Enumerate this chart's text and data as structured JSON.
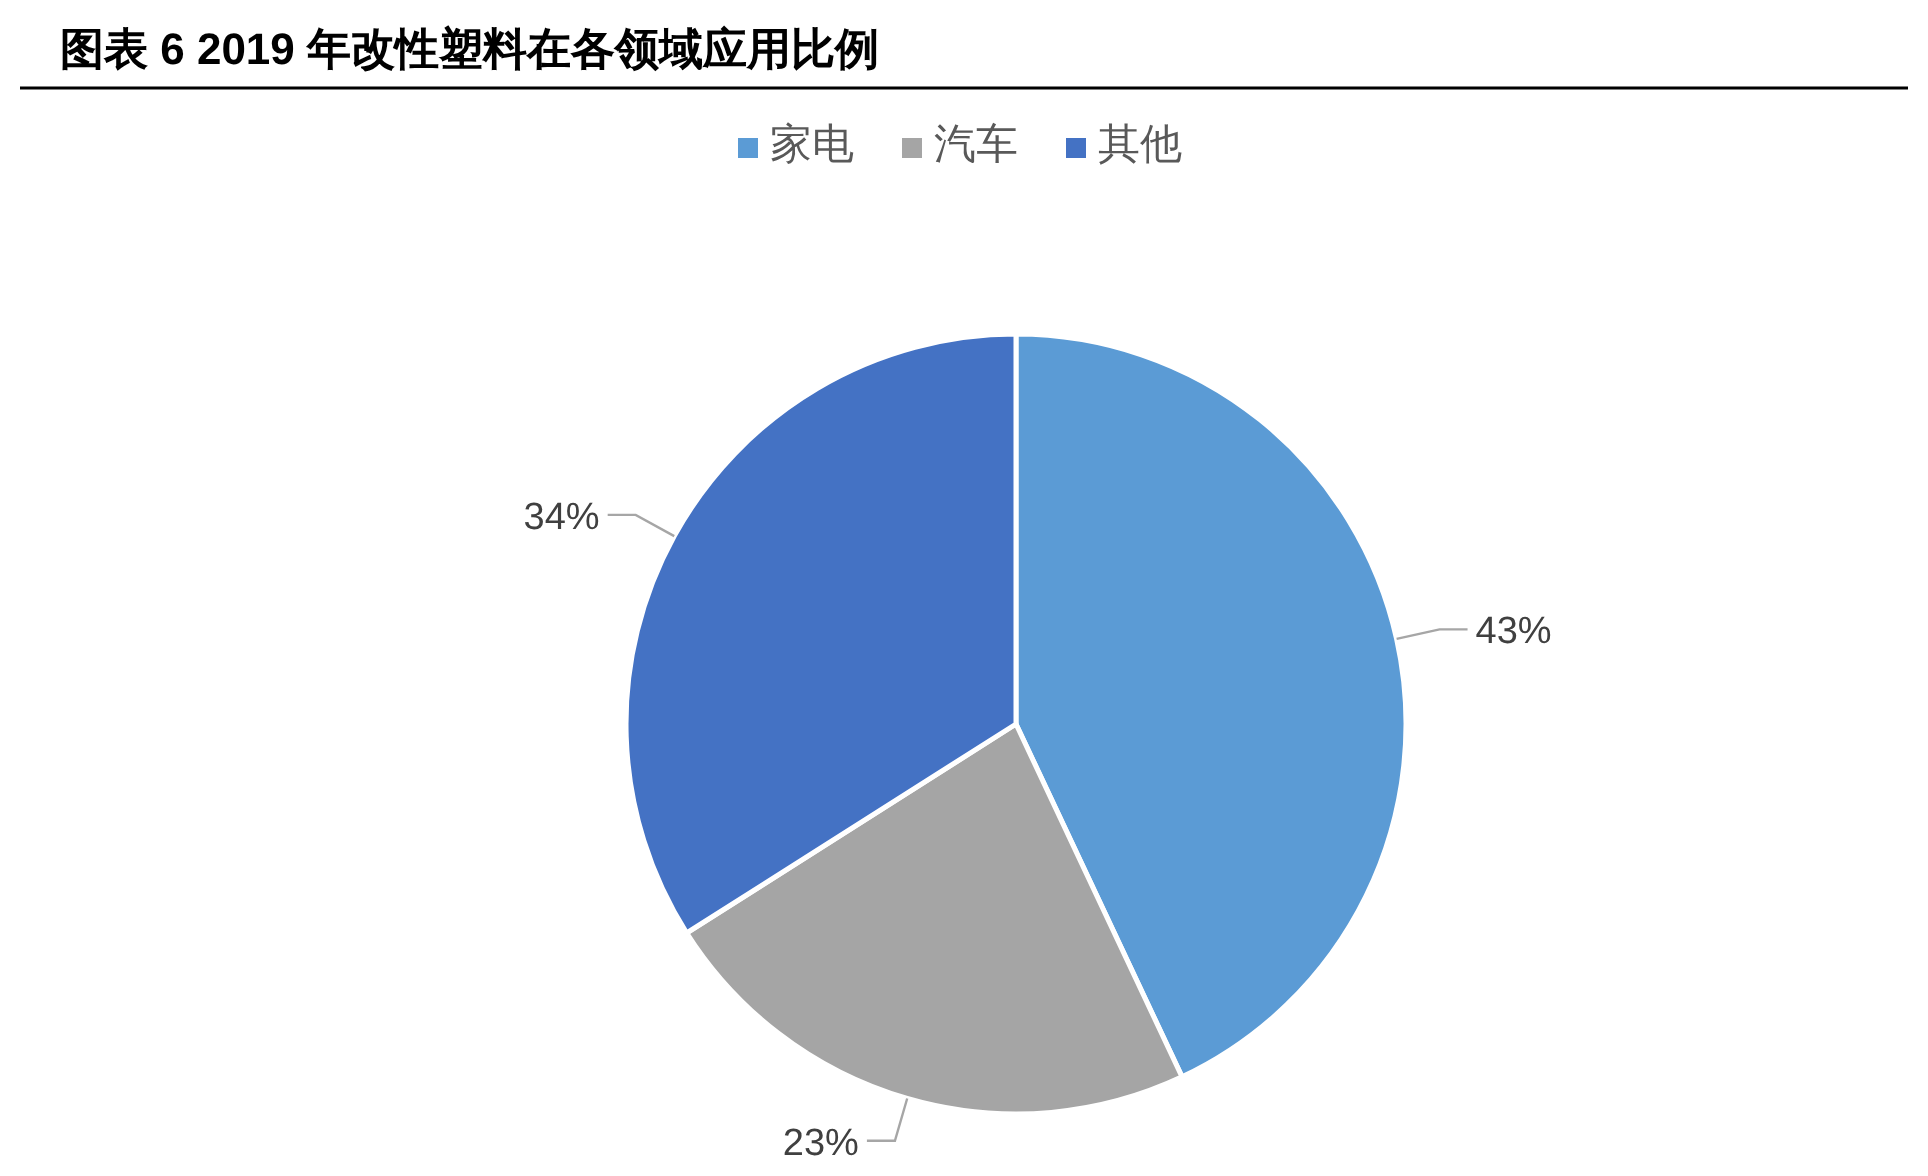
{
  "chart_data": {
    "type": "pie",
    "title": "图表 6  2019 年改性塑料在各领域应用比例",
    "categories": [
      "家电",
      "汽车",
      "其他"
    ],
    "values": [
      43,
      23,
      34
    ],
    "colors": [
      "#5b9bd5",
      "#a5a5a5",
      "#4472c4"
    ],
    "value_labels": [
      "43%",
      "23%",
      "34%"
    ],
    "legend": "top"
  }
}
